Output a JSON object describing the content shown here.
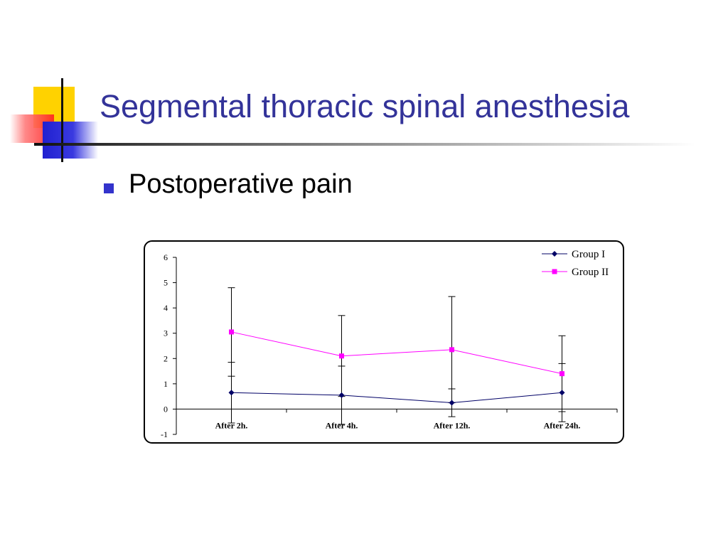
{
  "slide": {
    "title": "Segmental thoracic spinal anesthesia",
    "bullets": [
      "Postoperative pain"
    ]
  },
  "chart_data": {
    "type": "line",
    "categories": [
      "After 2h.",
      "After 4h.",
      "After 12h.",
      "After 24h."
    ],
    "series": [
      {
        "name": "Group I",
        "color": "#000066",
        "marker": "diamond",
        "values": [
          0.65,
          0.55,
          0.25,
          0.65
        ],
        "error_upper": [
          1.85,
          1.7,
          0.8,
          1.8
        ],
        "error_lower": [
          -0.55,
          -0.6,
          -0.3,
          -0.5
        ]
      },
      {
        "name": "Group II",
        "color": "#FF00FF",
        "marker": "square",
        "values": [
          3.05,
          2.1,
          2.35,
          1.4
        ],
        "error_upper": [
          4.8,
          3.7,
          4.45,
          2.9
        ],
        "error_lower": [
          1.3,
          0.5,
          0.25,
          -0.1
        ]
      }
    ],
    "title": "",
    "xlabel": "",
    "ylabel": "",
    "ylim": [
      -1,
      6
    ],
    "yticks": [
      "-1",
      "0",
      "1",
      "2",
      "3",
      "4",
      "5",
      "6"
    ],
    "grid": false,
    "legend_position": "top-right"
  }
}
